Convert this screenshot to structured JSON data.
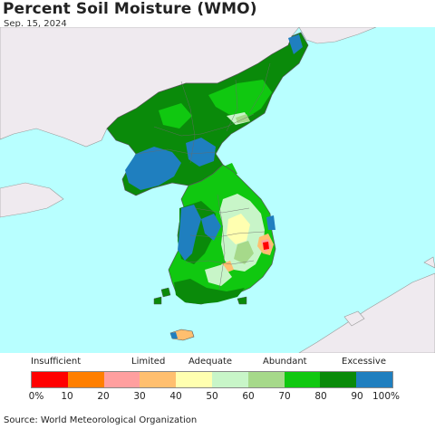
{
  "title": "Percent Soil Moisture (WMO)",
  "date": "Sep. 15, 2024",
  "source": "Source: World Meteorological Organization",
  "legend": {
    "categories": [
      "Insufficient",
      "Limited",
      "Adequate",
      "Abundant",
      "Excessive"
    ],
    "bins": [
      {
        "range": "0-10",
        "color": "#ff0000"
      },
      {
        "range": "10-20",
        "color": "#ff7f00"
      },
      {
        "range": "20-30",
        "color": "#ff9f9f"
      },
      {
        "range": "30-40",
        "color": "#ffbf6f"
      },
      {
        "range": "40-50",
        "color": "#ffffb0"
      },
      {
        "range": "50-60",
        "color": "#c8f5c8"
      },
      {
        "range": "60-70",
        "color": "#a6d98a"
      },
      {
        "range": "70-80",
        "color": "#10c810"
      },
      {
        "range": "80-90",
        "color": "#0a8a0a"
      },
      {
        "range": "90-100",
        "color": "#1f7fbf"
      }
    ],
    "ticks": [
      "0%",
      "10",
      "20",
      "30",
      "40",
      "50",
      "60",
      "70",
      "80",
      "90",
      "100%"
    ]
  },
  "colors": {
    "sea": "#b8ffff",
    "foreign_land": "#efeaef",
    "boundary": "#6a6a6a"
  }
}
